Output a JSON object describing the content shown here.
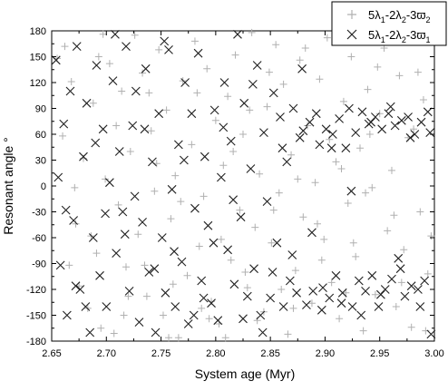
{
  "chart_data": {
    "type": "scatter",
    "xlabel": "System age (Myr)",
    "ylabel": "Resonant angle °",
    "xlim": [
      2.65,
      3.0
    ],
    "ylim": [
      -180,
      180
    ],
    "xticks": [
      "2.65",
      "2.70",
      "2.75",
      "2.80",
      "2.85",
      "2.90",
      "2.95",
      "3.00"
    ],
    "yticks": [
      "180",
      "150",
      "120",
      "90",
      "60",
      "30",
      "0",
      "-30",
      "-60",
      "-90",
      "-120",
      "-150",
      "-180"
    ],
    "grid": false,
    "legend_position": "top-right",
    "series": [
      {
        "name": "5λ₁-2λ₂-3ϖ₂",
        "legend": {
          "base": "5λ",
          "s1": "1",
          "mid1": "-2λ",
          "s2": "2",
          "mid2": "-3ϖ",
          "s3": "2"
        },
        "marker": "plus",
        "color": "#b0b0b0",
        "points": [
          [
            2.655,
            148
          ],
          [
            2.662,
            162
          ],
          [
            2.668,
            121
          ],
          [
            2.672,
            -44
          ],
          [
            2.675,
            -116
          ],
          [
            2.679,
            32
          ],
          [
            2.683,
            -142
          ],
          [
            2.688,
            96
          ],
          [
            2.691,
            -78
          ],
          [
            2.695,
            -165
          ],
          [
            2.699,
            8
          ],
          [
            2.703,
            142
          ],
          [
            2.707,
            -171
          ],
          [
            2.711,
            -22
          ],
          [
            2.714,
            110
          ],
          [
            2.718,
            -94
          ],
          [
            2.722,
            40
          ],
          [
            2.726,
            175
          ],
          [
            2.729,
            -56
          ],
          [
            2.733,
            131
          ],
          [
            2.737,
            -128
          ],
          [
            2.741,
            64
          ],
          [
            2.744,
            -6
          ],
          [
            2.748,
            158
          ],
          [
            2.752,
            -150
          ],
          [
            2.755,
            88
          ],
          [
            2.759,
            -38
          ],
          [
            2.763,
            12
          ],
          [
            2.766,
            -176
          ],
          [
            2.77,
            122
          ],
          [
            2.774,
            -104
          ],
          [
            2.778,
            48
          ],
          [
            2.781,
            168
          ],
          [
            2.785,
            -70
          ],
          [
            2.789,
            -12
          ],
          [
            2.792,
            136
          ],
          [
            2.796,
            -134
          ],
          [
            2.8,
            76
          ],
          [
            2.803,
            -160
          ],
          [
            2.807,
            24
          ],
          [
            2.811,
            104
          ],
          [
            2.814,
            -86
          ],
          [
            2.818,
            152
          ],
          [
            2.822,
            -28
          ],
          [
            2.825,
            60
          ],
          [
            2.829,
            -118
          ],
          [
            2.833,
            178
          ],
          [
            2.836,
            -48
          ],
          [
            2.84,
            14
          ],
          [
            2.844,
            -146
          ],
          [
            2.847,
            92
          ],
          [
            2.851,
            -66
          ],
          [
            2.855,
            164
          ],
          [
            2.858,
            -8
          ],
          [
            2.862,
            118
          ],
          [
            2.866,
            -172
          ],
          [
            2.869,
            36
          ],
          [
            2.873,
            -98
          ],
          [
            2.877,
            146
          ],
          [
            2.88,
            -36
          ],
          [
            2.884,
            70
          ],
          [
            2.888,
            -136
          ],
          [
            2.891,
            4
          ],
          [
            2.895,
            124
          ],
          [
            2.899,
            -62
          ],
          [
            2.902,
            172
          ],
          [
            2.906,
            -112
          ],
          [
            2.91,
            28
          ],
          [
            2.913,
            -154
          ],
          [
            2.917,
            98
          ],
          [
            2.921,
            -20
          ],
          [
            2.924,
            150
          ],
          [
            2.928,
            -82
          ],
          [
            2.932,
            44
          ],
          [
            2.935,
            -168
          ],
          [
            2.939,
            112
          ],
          [
            2.943,
            -2
          ],
          [
            2.946,
            -126
          ],
          [
            2.95,
            84
          ],
          [
            2.954,
            160
          ],
          [
            2.957,
            -52
          ],
          [
            2.961,
            18
          ],
          [
            2.965,
            -140
          ],
          [
            2.968,
            128
          ],
          [
            2.972,
            -74
          ],
          [
            2.976,
            56
          ],
          [
            2.979,
            -164
          ],
          [
            2.983,
            176
          ],
          [
            2.987,
            -30
          ],
          [
            2.99,
            100
          ],
          [
            2.994,
            -102
          ],
          [
            2.997,
            -58
          ],
          [
            2.66,
            58
          ],
          [
            2.671,
            -2
          ],
          [
            2.686,
            -58
          ],
          [
            2.697,
            176
          ],
          [
            2.709,
            70
          ],
          [
            2.72,
            -128
          ],
          [
            2.735,
            -92
          ],
          [
            2.746,
            26
          ],
          [
            2.757,
            -176
          ],
          [
            2.768,
            -18
          ],
          [
            2.783,
            108
          ],
          [
            2.794,
            -154
          ],
          [
            2.805,
            -62
          ],
          [
            2.816,
            40
          ],
          [
            2.827,
            -100
          ],
          [
            2.838,
            -156
          ],
          [
            2.849,
            132
          ],
          [
            2.86,
            -120
          ],
          [
            2.871,
            -142
          ],
          [
            2.882,
            160
          ],
          [
            2.893,
            -44
          ],
          [
            2.904,
            54
          ],
          [
            2.915,
            20
          ],
          [
            2.926,
            -66
          ],
          [
            2.937,
            -8
          ],
          [
            2.948,
            138
          ],
          [
            2.959,
            176
          ],
          [
            2.97,
            -112
          ],
          [
            2.981,
            66
          ],
          [
            2.992,
            -168
          ],
          [
            2.666,
            -92
          ],
          [
            2.693,
            150
          ],
          [
            2.716,
            -150
          ],
          [
            2.739,
            108
          ],
          [
            2.761,
            -114
          ],
          [
            2.787,
            -142
          ],
          [
            2.809,
            -176
          ],
          [
            2.831,
            88
          ],
          [
            2.853,
            -28
          ],
          [
            2.875,
            8
          ],
          [
            2.897,
            -86
          ],
          [
            2.919,
            -124
          ],
          [
            2.941,
            60
          ],
          [
            2.963,
            -34
          ],
          [
            2.985,
            132
          ]
        ]
      },
      {
        "name": "5λ₁-2λ₂-3ϖ₁",
        "legend": {
          "base": "5λ",
          "s1": "1",
          "mid1": "-2λ",
          "s2": "2",
          "mid2": "-3ϖ",
          "s3": "1"
        },
        "marker": "x",
        "color": "#222222",
        "points": [
          [
            2.654,
            146
          ],
          [
            2.658,
            -92
          ],
          [
            2.661,
            72
          ],
          [
            2.664,
            -150
          ],
          [
            2.667,
            110
          ],
          [
            2.67,
            -40
          ],
          [
            2.673,
            162
          ],
          [
            2.676,
            -120
          ],
          [
            2.679,
            34
          ],
          [
            2.682,
            96
          ],
          [
            2.685,
            -170
          ],
          [
            2.688,
            -60
          ],
          [
            2.691,
            140
          ],
          [
            2.694,
            -104
          ],
          [
            2.697,
            66
          ],
          [
            2.7,
            -140
          ],
          [
            2.703,
            4
          ],
          [
            2.706,
            122
          ],
          [
            2.709,
            -78
          ],
          [
            2.712,
            40
          ],
          [
            2.715,
            -30
          ],
          [
            2.718,
            162
          ],
          [
            2.721,
            -122
          ],
          [
            2.724,
            70
          ],
          [
            2.727,
            110
          ],
          [
            2.73,
            -158
          ],
          [
            2.733,
            -42
          ],
          [
            2.736,
            136
          ],
          [
            2.739,
            -100
          ],
          [
            2.742,
            28
          ],
          [
            2.745,
            -170
          ],
          [
            2.748,
            84
          ],
          [
            2.751,
            -60
          ],
          [
            2.754,
            -124
          ],
          [
            2.757,
            158
          ],
          [
            2.76,
            -4
          ],
          [
            2.763,
            -140
          ],
          [
            2.766,
            48
          ],
          [
            2.769,
            -88
          ],
          [
            2.772,
            120
          ],
          [
            2.775,
            -160
          ],
          [
            2.778,
            84
          ],
          [
            2.781,
            -26
          ],
          [
            2.784,
            154
          ],
          [
            2.787,
            -110
          ],
          [
            2.79,
            34
          ],
          [
            2.793,
            -46
          ],
          [
            2.796,
            -136
          ],
          [
            2.799,
            88
          ],
          [
            2.802,
            -156
          ],
          [
            2.805,
            10
          ],
          [
            2.808,
            120
          ],
          [
            2.811,
            -74
          ],
          [
            2.814,
            52
          ],
          [
            2.817,
            -114
          ],
          [
            2.82,
            176
          ],
          [
            2.823,
            -36
          ],
          [
            2.826,
            96
          ],
          [
            2.829,
            -128
          ],
          [
            2.832,
            20
          ],
          [
            2.835,
            -96
          ],
          [
            2.838,
            140
          ],
          [
            2.841,
            -150
          ],
          [
            2.844,
            62
          ],
          [
            2.847,
            -18
          ],
          [
            2.85,
            -130
          ],
          [
            2.853,
            108
          ],
          [
            2.856,
            -66
          ],
          [
            2.859,
            80
          ],
          [
            2.862,
            -140
          ],
          [
            2.865,
            28
          ],
          [
            2.868,
            -110
          ],
          [
            2.871,
            90
          ],
          [
            2.874,
            -124
          ],
          [
            2.877,
            56
          ],
          [
            2.88,
            64
          ],
          [
            2.883,
            -138
          ],
          [
            2.886,
            74
          ],
          [
            2.889,
            -122
          ],
          [
            2.892,
            84
          ],
          [
            2.895,
            48
          ],
          [
            2.898,
            -118
          ],
          [
            2.901,
            66
          ],
          [
            2.904,
            -130
          ],
          [
            2.907,
            60
          ],
          [
            2.91,
            -104
          ],
          [
            2.913,
            78
          ],
          [
            2.916,
            -124
          ],
          [
            2.919,
            44
          ],
          [
            2.922,
            90
          ],
          [
            2.925,
            -140
          ],
          [
            2.928,
            62
          ],
          [
            2.931,
            -110
          ],
          [
            2.934,
            86
          ],
          [
            2.937,
            -122
          ],
          [
            2.94,
            72
          ],
          [
            2.943,
            -104
          ],
          [
            2.946,
            80
          ],
          [
            2.949,
            -140
          ],
          [
            2.952,
            66
          ],
          [
            2.955,
            -120
          ],
          [
            2.958,
            84
          ],
          [
            2.961,
            -108
          ],
          [
            2.964,
            70
          ],
          [
            2.967,
            -84
          ],
          [
            2.97,
            76
          ],
          [
            2.973,
            -128
          ],
          [
            2.976,
            80
          ],
          [
            2.979,
            -116
          ],
          [
            2.982,
            60
          ],
          [
            2.985,
            -120
          ],
          [
            2.988,
            74
          ],
          [
            2.991,
            -110
          ],
          [
            2.994,
            86
          ],
          [
            2.997,
            -172
          ],
          [
            2.656,
            10
          ],
          [
            2.663,
            -28
          ],
          [
            2.672,
            -116
          ],
          [
            2.681,
            -140
          ],
          [
            2.69,
            50
          ],
          [
            2.699,
            -32
          ],
          [
            2.708,
            176
          ],
          [
            2.717,
            -56
          ],
          [
            2.726,
            -12
          ],
          [
            2.735,
            66
          ],
          [
            2.744,
            -96
          ],
          [
            2.753,
            168
          ],
          [
            2.762,
            -76
          ],
          [
            2.771,
            30
          ],
          [
            2.78,
            -150
          ],
          [
            2.789,
            -130
          ],
          [
            2.798,
            -66
          ],
          [
            2.807,
            68
          ],
          [
            2.816,
            -16
          ],
          [
            2.825,
            -154
          ],
          [
            2.834,
            118
          ],
          [
            2.843,
            -170
          ],
          [
            2.852,
            -100
          ],
          [
            2.861,
            44
          ],
          [
            2.87,
            -80
          ],
          [
            2.879,
            136
          ],
          [
            2.888,
            -54
          ],
          [
            2.897,
            -144
          ],
          [
            2.906,
            44
          ],
          [
            2.915,
            -136
          ],
          [
            2.924,
            -6
          ],
          [
            2.933,
            -150
          ],
          [
            2.942,
            74
          ],
          [
            2.951,
            -126
          ],
          [
            2.96,
            92
          ],
          [
            2.969,
            -96
          ],
          [
            2.978,
            56
          ],
          [
            2.987,
            -140
          ],
          [
            2.996,
            62
          ]
        ]
      }
    ]
  }
}
